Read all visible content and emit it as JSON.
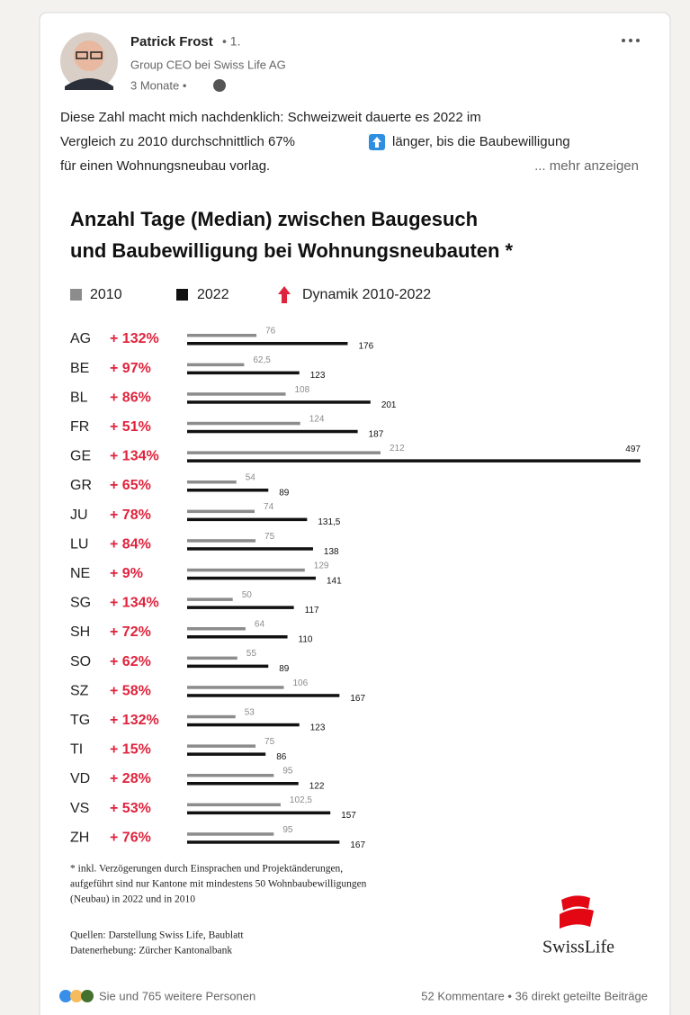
{
  "post": {
    "author": "Patrick Frost",
    "degree": "• 1.",
    "headline": "Group CEO bei Swiss Life AG",
    "time": "3 Monate •",
    "line1": "Diese Zahl macht mich nachdenklich: Schweizweit dauerte es 2022 im",
    "line2a": "Vergleich zu 2010 durchschnittlich 67%",
    "line2b": "länger, bis die Baubewilligung",
    "line3": "für einen Wohnungsneubau vorlag.",
    "more": "... mehr anzeigen"
  },
  "chart_data": {
    "type": "bar",
    "orientation": "horizontal",
    "title_lines": [
      "Anzahl Tage (Median) zwischen Baugesuch",
      "und Baubewilligung bei Wohnungsneubauten *"
    ],
    "categories": [
      "AG",
      "BE",
      "BL",
      "FR",
      "GE",
      "GR",
      "JU",
      "LU",
      "NE",
      "SG",
      "SH",
      "SO",
      "SZ",
      "TG",
      "TI",
      "VD",
      "VS",
      "ZH"
    ],
    "series": [
      {
        "name": "2010",
        "color": "#8c8c8c",
        "values": [
          76,
          62.5,
          108,
          124,
          212,
          54,
          74,
          75,
          129,
          50,
          64,
          55,
          106,
          53,
          75,
          95,
          102.5,
          95
        ],
        "value_labels": [
          "76",
          "62,5",
          "108",
          "124",
          "212",
          "54",
          "74",
          "75",
          "129",
          "50",
          "64",
          "55",
          "106",
          "53",
          "75",
          "95",
          "102,5",
          "95"
        ]
      },
      {
        "name": "2022",
        "color": "#111111",
        "values": [
          176,
          123,
          201,
          187,
          497,
          89,
          131.5,
          138,
          141,
          117,
          110,
          89,
          167,
          123,
          86,
          122,
          157,
          167
        ],
        "value_labels": [
          "176",
          "123",
          "201",
          "187",
          "497",
          "89",
          "131,5",
          "138",
          "141",
          "117",
          "110",
          "89",
          "167",
          "123",
          "86",
          "122",
          "157",
          "167"
        ]
      }
    ],
    "dynamics": {
      "name": "Dynamik 2010-2022",
      "color": "#e0233d",
      "values": [
        132,
        97,
        86,
        51,
        134,
        65,
        78,
        84,
        9,
        134,
        72,
        62,
        58,
        132,
        15,
        28,
        53,
        76
      ],
      "value_labels": [
        "+ 132%",
        "+ 97%",
        "+ 86%",
        "+ 51%",
        "+ 134%",
        "+ 65%",
        "+ 78%",
        "+ 84%",
        "+ 9%",
        "+ 134%",
        "+ 72%",
        "+ 62%",
        "+ 58%",
        "+ 132%",
        "+ 15%",
        "+ 28%",
        "+ 53%",
        "+ 76%"
      ]
    },
    "xlim": [
      0,
      500
    ]
  },
  "footnote": [
    "* inkl. Verzögerungen durch Einsprachen und Projektänderungen,",
    "aufgeführt sind nur Kantone mit mindestens 50 Wohnbaubewilligungen",
    "(Neubau) in 2022 und in 2010"
  ],
  "sources": [
    "Quellen: Darstellung Swiss Life, Baublatt",
    "Datenerhebung: Zürcher Kantonalbank"
  ],
  "logo": "SwissLife",
  "reactions": "Sie und 765 weitere Personen",
  "stats": "52 Kommentare • 36 direkt geteilte Beiträge"
}
